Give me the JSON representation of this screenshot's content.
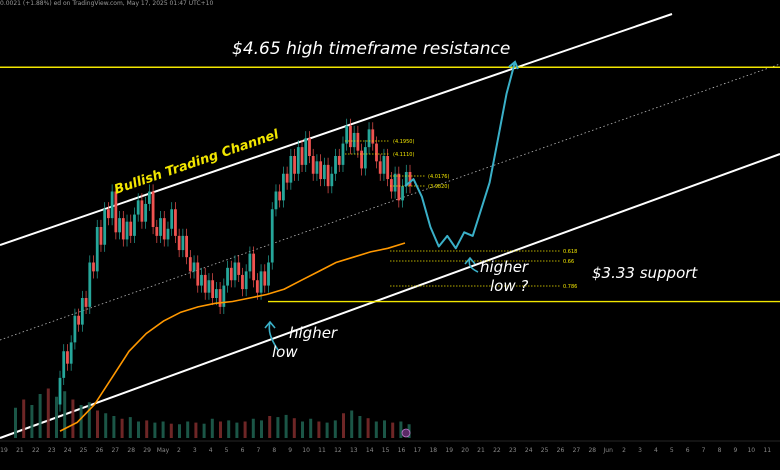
{
  "header": {
    "text": "ed on TradingView.com, May 17, 2025 01:47 UTC+10",
    "left_value": "0.0021 (+1.88%)"
  },
  "colors": {
    "bg": "#000000",
    "channel": "#ffffff",
    "midline": "#bbbbbb",
    "level": "#f2e600",
    "up": "#26a69a",
    "down": "#ef5350",
    "ma": "#ff9800",
    "projection": "#3ab0c8",
    "volume_up": "#1e5f4f",
    "volume_down": "#7a2a2a"
  },
  "annotations": {
    "resistance": "$4.65 high timeframe resistance",
    "support": "$3.33 support",
    "channel": "Bullish Trading Channel",
    "higher_low_1": "higher",
    "higher_low_1b": "low",
    "higher_low_2": "higher",
    "higher_low_2b": "low ?"
  },
  "fib_labels": [
    "(4.1950)",
    "(4.1110)",
    "(4.0176)",
    "(3.9820)",
    "0.618",
    "0.66",
    "0.786"
  ],
  "x_ticks": [
    "19",
    "21",
    "22",
    "23",
    "24",
    "25",
    "26",
    "27",
    "28",
    "29",
    "May",
    "2",
    "3",
    "4",
    "5",
    "6",
    "7",
    "8",
    "9",
    "10",
    "11",
    "12",
    "13",
    "14",
    "15",
    "16",
    "17",
    "18",
    "19",
    "20",
    "21",
    "22",
    "23",
    "24",
    "25",
    "26",
    "27",
    "28",
    "Jun",
    "2",
    "3",
    "4",
    "5",
    "6",
    "7",
    "8",
    "9",
    "10",
    "11"
  ],
  "chart_data": {
    "type": "candlestick",
    "title": "",
    "ylim": [
      2.55,
      4.95
    ],
    "resistance_level": 4.65,
    "support_level": 3.33,
    "candles": [
      [
        2.75,
        2.9
      ],
      [
        2.9,
        3.05
      ],
      [
        3.05,
        2.98
      ],
      [
        2.98,
        3.1
      ],
      [
        3.1,
        3.25
      ],
      [
        3.25,
        3.2
      ],
      [
        3.2,
        3.35
      ],
      [
        3.35,
        3.3
      ],
      [
        3.3,
        3.55
      ],
      [
        3.55,
        3.5
      ],
      [
        3.5,
        3.75
      ],
      [
        3.75,
        3.65
      ],
      [
        3.65,
        3.85
      ],
      [
        3.85,
        3.8
      ],
      [
        3.8,
        3.95
      ],
      [
        3.95,
        3.72
      ],
      [
        3.72,
        3.8
      ],
      [
        3.8,
        3.68
      ],
      [
        3.68,
        3.78
      ],
      [
        3.78,
        3.7
      ],
      [
        3.7,
        3.82
      ],
      [
        3.82,
        3.9
      ],
      [
        3.9,
        3.78
      ],
      [
        3.78,
        3.88
      ],
      [
        3.88,
        3.95
      ],
      [
        3.95,
        3.75
      ],
      [
        3.75,
        3.7
      ],
      [
        3.7,
        3.8
      ],
      [
        3.8,
        3.68
      ],
      [
        3.68,
        3.74
      ],
      [
        3.74,
        3.85
      ],
      [
        3.85,
        3.7
      ],
      [
        3.7,
        3.62
      ],
      [
        3.62,
        3.7
      ],
      [
        3.7,
        3.58
      ],
      [
        3.58,
        3.5
      ],
      [
        3.5,
        3.55
      ],
      [
        3.55,
        3.42
      ],
      [
        3.42,
        3.48
      ],
      [
        3.48,
        3.38
      ],
      [
        3.38,
        3.45
      ],
      [
        3.45,
        3.35
      ],
      [
        3.35,
        3.4
      ],
      [
        3.4,
        3.3
      ],
      [
        3.3,
        3.42
      ],
      [
        3.42,
        3.52
      ],
      [
        3.52,
        3.45
      ],
      [
        3.45,
        3.55
      ],
      [
        3.55,
        3.48
      ],
      [
        3.48,
        3.4
      ],
      [
        3.4,
        3.5
      ],
      [
        3.5,
        3.6
      ],
      [
        3.6,
        3.45
      ],
      [
        3.45,
        3.38
      ],
      [
        3.38,
        3.5
      ],
      [
        3.5,
        3.42
      ],
      [
        3.42,
        3.55
      ],
      [
        3.55,
        3.85
      ],
      [
        3.85,
        3.95
      ],
      [
        3.95,
        3.9
      ],
      [
        3.9,
        4.05
      ],
      [
        4.05,
        4.0
      ],
      [
        4.0,
        4.15
      ],
      [
        4.15,
        4.05
      ],
      [
        4.05,
        4.2
      ],
      [
        4.2,
        4.1
      ],
      [
        4.1,
        4.25
      ],
      [
        4.25,
        4.15
      ],
      [
        4.15,
        4.05
      ],
      [
        4.05,
        4.12
      ],
      [
        4.12,
        4.02
      ],
      [
        4.02,
        4.1
      ],
      [
        4.1,
        3.98
      ],
      [
        3.98,
        4.05
      ],
      [
        4.05,
        4.15
      ],
      [
        4.15,
        4.1
      ],
      [
        4.1,
        4.22
      ],
      [
        4.22,
        4.32
      ],
      [
        4.32,
        4.2
      ],
      [
        4.2,
        4.28
      ],
      [
        4.28,
        4.18
      ],
      [
        4.18,
        4.08
      ],
      [
        4.08,
        4.2
      ],
      [
        4.2,
        4.3
      ],
      [
        4.3,
        4.22
      ],
      [
        4.22,
        4.12
      ],
      [
        4.12,
        4.05
      ],
      [
        4.05,
        4.15
      ],
      [
        4.15,
        4.02
      ],
      [
        4.02,
        3.95
      ],
      [
        3.95,
        4.05
      ],
      [
        4.05,
        3.9
      ],
      [
        3.9,
        3.98
      ],
      [
        3.98,
        4.06
      ],
      [
        4.06,
        3.98
      ]
    ],
    "ma_values": [
      2.6,
      2.65,
      2.75,
      2.9,
      3.05,
      3.15,
      3.22,
      3.27,
      3.3,
      3.32,
      3.33,
      3.35,
      3.37,
      3.4,
      3.45,
      3.5,
      3.55,
      3.58,
      3.61,
      3.63,
      3.66
    ],
    "projection": [
      3.98,
      4.02,
      3.92,
      3.75,
      3.64,
      3.7,
      3.63,
      3.72,
      3.7,
      3.85,
      4.0,
      4.25,
      4.5,
      4.68
    ],
    "volume": [
      0.55,
      0.7,
      0.6,
      0.8,
      0.9,
      0.75,
      0.85,
      0.7,
      0.6,
      0.65,
      0.5,
      0.45,
      0.4,
      0.35,
      0.38,
      0.3,
      0.32,
      0.28,
      0.3,
      0.26,
      0.25,
      0.3,
      0.28,
      0.26,
      0.35,
      0.3,
      0.32,
      0.28,
      0.3,
      0.35,
      0.32,
      0.4,
      0.38,
      0.42,
      0.36,
      0.3,
      0.35,
      0.3,
      0.28,
      0.32,
      0.45,
      0.5,
      0.4,
      0.36,
      0.3,
      0.32,
      0.28,
      0.3,
      0.25
    ]
  }
}
